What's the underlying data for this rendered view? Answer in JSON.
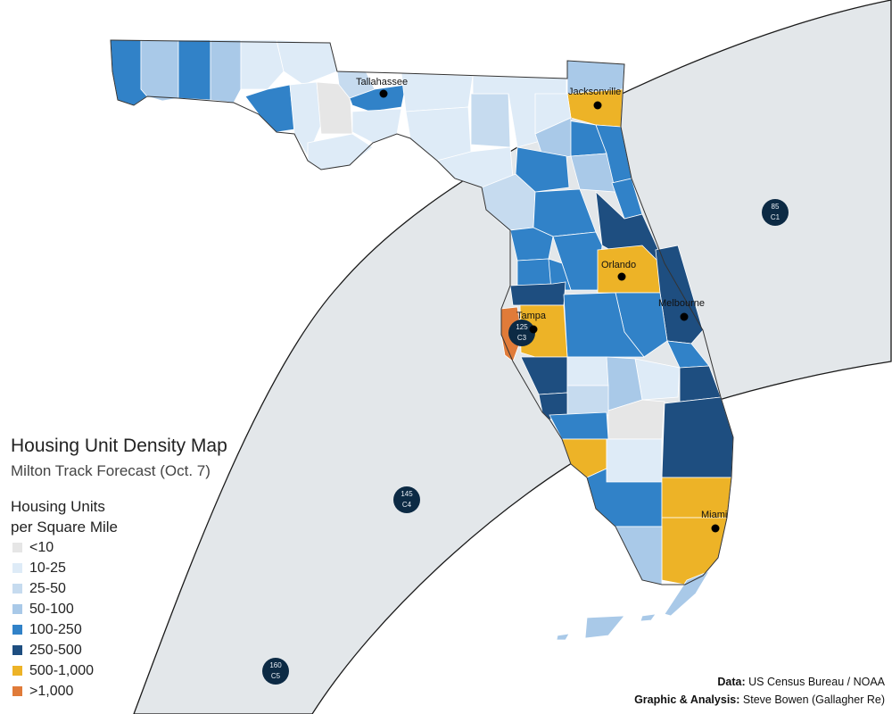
{
  "title": "Housing Unit Density Map",
  "subtitle": "Milton Track Forecast (Oct. 7)",
  "legend": {
    "title_line1": "Housing Units",
    "title_line2": "per Square Mile",
    "items": [
      {
        "label": "<10",
        "color": "#e6e6e6"
      },
      {
        "label": "10-25",
        "color": "#deebf7"
      },
      {
        "label": "25-50",
        "color": "#c6dbef"
      },
      {
        "label": "50-100",
        "color": "#a9c9e8"
      },
      {
        "label": "100-250",
        "color": "#3182c8"
      },
      {
        "label": "250-500",
        "color": "#1e4e80"
      },
      {
        "label": "500-1,000",
        "color": "#edb327"
      },
      {
        "label": ">1,000",
        "color": "#e07b39"
      }
    ]
  },
  "cities": [
    {
      "name": "Tallahassee"
    },
    {
      "name": "Jacksonville"
    },
    {
      "name": "Orlando"
    },
    {
      "name": "Melbourne"
    },
    {
      "name": "Tampa"
    },
    {
      "name": "Miami"
    }
  ],
  "forecast_points": [
    {
      "wind": "85",
      "category": "C1"
    },
    {
      "wind": "125",
      "category": "C3"
    },
    {
      "wind": "145",
      "category": "C4"
    },
    {
      "wind": "160",
      "category": "C5"
    }
  ],
  "credits": {
    "data_label": "Data:",
    "data_value": " US Census Bureau / NOAA",
    "graphic_label": "Graphic & Analysis:",
    "graphic_value": " Steve Bowen (Gallagher Re)"
  },
  "colors": {
    "cone_fill": "#e3e7ea",
    "marker_fill": "#0c2a44"
  }
}
